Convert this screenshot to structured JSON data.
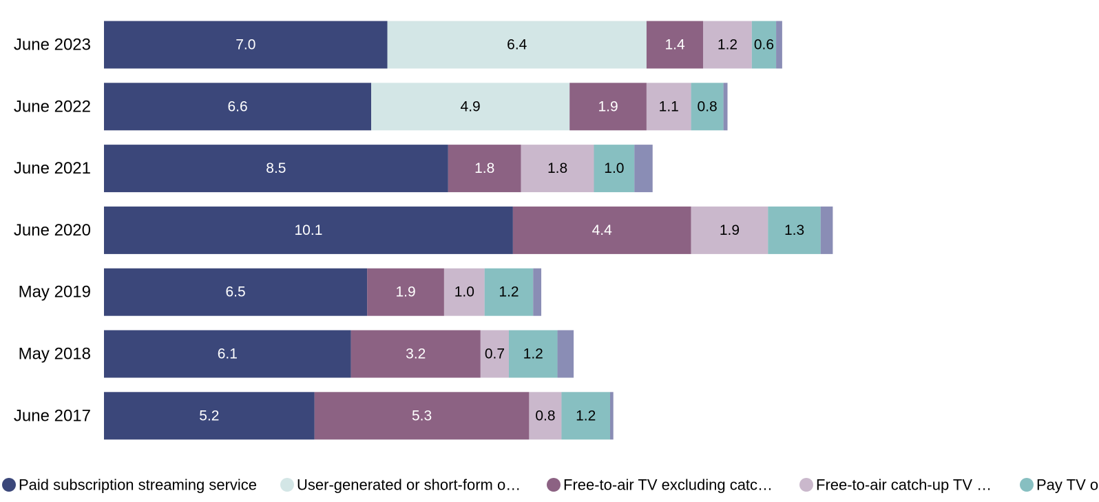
{
  "chart_data": {
    "type": "bar",
    "orientation": "horizontal",
    "stacked": true,
    "title": "",
    "xlabel": "",
    "ylabel": "",
    "xlim": [
      0,
      18
    ],
    "grid": false,
    "legend_position": "bottom",
    "categories": [
      "June 2023",
      "June 2022",
      "June 2021",
      "June 2020",
      "May 2019",
      "May 2018",
      "June 2017"
    ],
    "series": [
      {
        "name": "Paid subscription streaming service",
        "legend_label": "Paid subscription streaming service",
        "color": "#3b477a",
        "label_color": "#ffffff",
        "values": [
          7.0,
          6.6,
          8.5,
          10.1,
          6.5,
          6.1,
          5.2
        ]
      },
      {
        "name": "User-generated or short-form o…",
        "legend_label": "User-generated or short-form o…",
        "color": "#d3e6e6",
        "label_color": "#000000",
        "values": [
          6.4,
          4.9,
          0,
          0,
          0,
          0,
          0
        ]
      },
      {
        "name": "Free-to-air TV excluding catc…",
        "legend_label": "Free-to-air TV excluding catc…",
        "color": "#8c6283",
        "label_color": "#ffffff",
        "values": [
          1.4,
          1.9,
          1.8,
          4.4,
          1.9,
          3.2,
          5.3
        ]
      },
      {
        "name": "Free-to-air catch-up TV …",
        "legend_label": "Free-to-air catch-up TV …",
        "color": "#cab8cc",
        "label_color": "#000000",
        "values": [
          1.2,
          1.1,
          1.8,
          1.9,
          1.0,
          0.7,
          0.8
        ]
      },
      {
        "name": "Pay TV o…",
        "legend_label": "Pay TV o",
        "color": "#87bfc1",
        "label_color": "#000000",
        "values": [
          0.6,
          0.8,
          1.0,
          1.3,
          1.2,
          1.2,
          1.2
        ]
      },
      {
        "name": "",
        "legend_label": "",
        "color": "#8a8db5",
        "label_color": "#000000",
        "values": [
          0.15,
          0.1,
          0.45,
          0.3,
          0.2,
          0.4,
          0.08
        ]
      }
    ]
  }
}
